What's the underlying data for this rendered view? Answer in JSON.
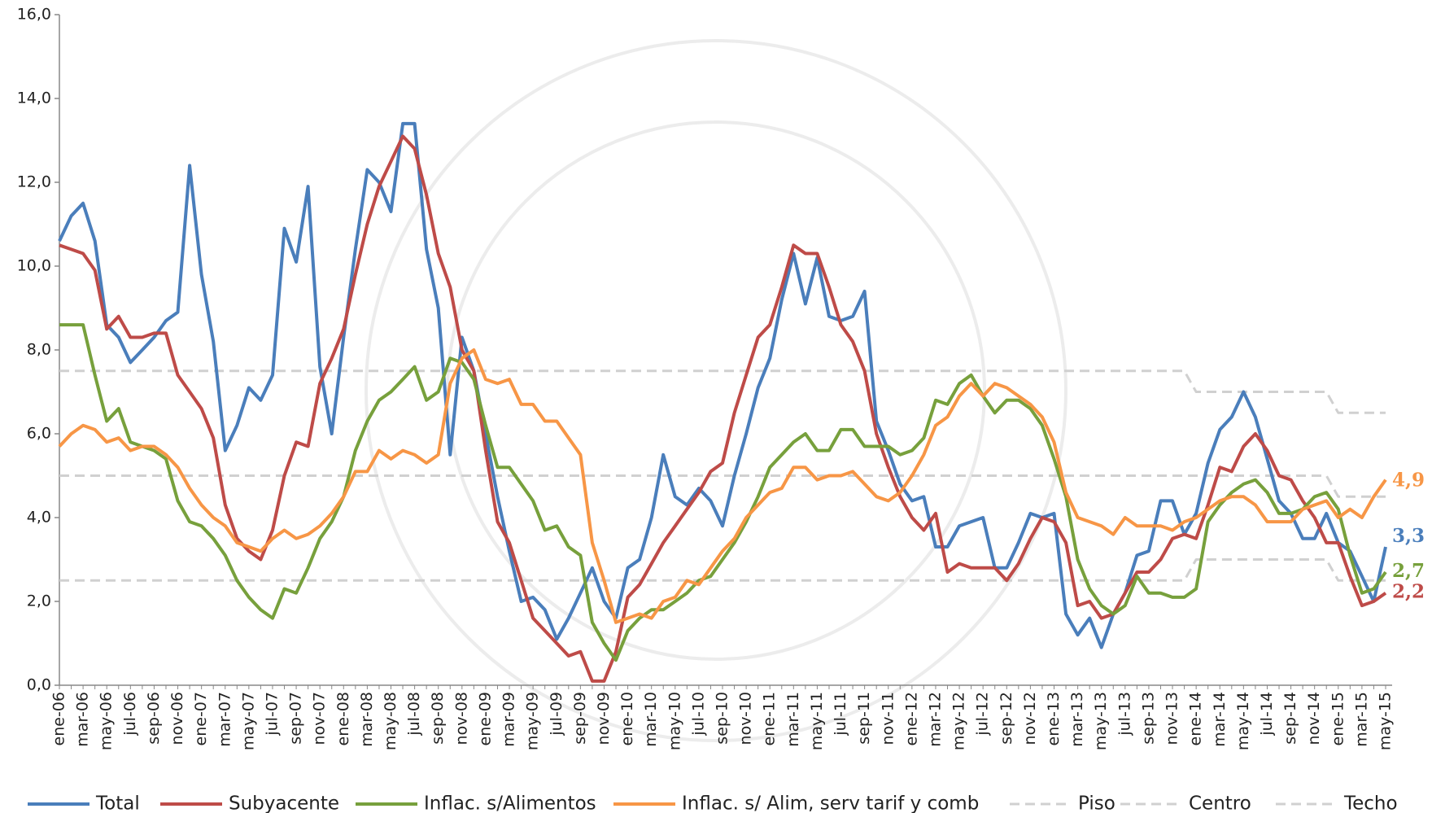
{
  "chart_data": {
    "type": "line",
    "categories": [
      "ene-06",
      null,
      "mar-06",
      null,
      "may-06",
      null,
      "jul-06",
      null,
      "sep-06",
      null,
      "nov-06",
      null,
      "ene-07",
      null,
      "mar-07",
      null,
      "may-07",
      null,
      "jul-07",
      null,
      "sep-07",
      null,
      "nov-07",
      null,
      "ene-08",
      null,
      "mar-08",
      null,
      "may-08",
      null,
      "jul-08",
      null,
      "sep-08",
      null,
      "nov-08",
      null,
      "ene-09",
      null,
      "mar-09",
      null,
      "may-09",
      null,
      "jul-09",
      null,
      "sep-09",
      null,
      "nov-09",
      null,
      "ene-10",
      null,
      "mar-10",
      null,
      "may-10",
      null,
      "jul-10",
      null,
      "sep-10",
      null,
      "nov-10",
      null,
      "ene-11",
      null,
      "mar-11",
      null,
      "may-11",
      null,
      "jul-11",
      null,
      "sep-11",
      null,
      "nov-11",
      null,
      "ene-12",
      null,
      "mar-12",
      null,
      "may-12",
      null,
      "jul-12",
      null,
      "sep-12",
      null,
      "nov-12",
      null,
      "ene-13",
      null,
      "mar-13",
      null,
      "may-13",
      null,
      "jul-13",
      null,
      "sep-13",
      null,
      "nov-13",
      null,
      "ene-14",
      null,
      "mar-14",
      null,
      "may-14",
      null,
      "jul-14",
      null,
      "sep-14",
      null,
      "nov-14",
      null,
      "ene-15",
      null,
      "mar-15",
      null,
      "may-15"
    ],
    "ylim": [
      0,
      16
    ],
    "yticks": [
      {
        "value": 0,
        "label": "0,0"
      },
      {
        "value": 2,
        "label": "2,0"
      },
      {
        "value": 4,
        "label": "4,0"
      },
      {
        "value": 6,
        "label": "6,0"
      },
      {
        "value": 8,
        "label": "8,0"
      },
      {
        "value": 10,
        "label": "10,0"
      },
      {
        "value": 12,
        "label": "12,0"
      },
      {
        "value": 14,
        "label": "14,0"
      },
      {
        "value": 16,
        "label": "16,0"
      }
    ],
    "legend": "bottom",
    "series": [
      {
        "name": "Total",
        "color": "#4a7ebb",
        "last_label": "3,3",
        "values": [
          10.6,
          11.2,
          11.5,
          10.6,
          8.6,
          8.3,
          7.7,
          8.0,
          8.3,
          8.7,
          8.9,
          12.4,
          9.8,
          8.2,
          5.6,
          6.2,
          7.1,
          6.8,
          7.4,
          10.9,
          10.1,
          11.9,
          7.6,
          6.0,
          8.3,
          10.4,
          12.3,
          12.0,
          11.3,
          13.4,
          13.4,
          10.4,
          9.0,
          5.5,
          8.3,
          7.5,
          6.0,
          4.5,
          3.2,
          2.0,
          2.1,
          1.8,
          1.1,
          1.6,
          2.2,
          2.8,
          2.0,
          1.6,
          2.8,
          3.0,
          4.0,
          5.5,
          4.5,
          4.3,
          4.7,
          4.4,
          3.8,
          5.0,
          6.0,
          7.1,
          7.8,
          9.2,
          10.3,
          9.1,
          10.2,
          8.8,
          8.7,
          8.8,
          9.4,
          6.3,
          5.6,
          4.8,
          4.4,
          4.5,
          3.3,
          3.3,
          3.8,
          3.9,
          4.0,
          2.8,
          2.8,
          3.4,
          4.1,
          4.0,
          4.1,
          1.7,
          1.2,
          1.6,
          0.9,
          1.7,
          2.2,
          3.1,
          3.2,
          4.4,
          4.4,
          3.6,
          4.1,
          5.3,
          6.1,
          6.4,
          7.0,
          6.4,
          5.4,
          4.4,
          4.1,
          3.5,
          3.5,
          4.1,
          3.4,
          3.2,
          2.6,
          2.0,
          3.3
        ]
      },
      {
        "name": "Subyacente",
        "color": "#be4b48",
        "last_label": "2,2",
        "values": [
          10.5,
          10.4,
          10.3,
          9.9,
          8.5,
          8.8,
          8.3,
          8.3,
          8.4,
          8.4,
          7.4,
          7.0,
          6.6,
          5.9,
          4.3,
          3.5,
          3.2,
          3.0,
          3.7,
          5.0,
          5.8,
          5.7,
          7.2,
          7.8,
          8.5,
          9.8,
          11.0,
          11.9,
          12.5,
          13.1,
          12.8,
          11.7,
          10.3,
          9.5,
          8.0,
          7.5,
          5.6,
          3.9,
          3.4,
          2.5,
          1.6,
          1.3,
          1.0,
          0.7,
          0.8,
          0.1,
          0.1,
          0.8,
          2.1,
          2.4,
          2.9,
          3.4,
          3.8,
          4.2,
          4.6,
          5.1,
          5.3,
          6.5,
          7.4,
          8.3,
          8.6,
          9.5,
          10.5,
          10.3,
          10.3,
          9.5,
          8.6,
          8.2,
          7.5,
          6.0,
          5.2,
          4.5,
          4.0,
          3.7,
          4.1,
          2.7,
          2.9,
          2.8,
          2.8,
          2.8,
          2.5,
          2.9,
          3.5,
          4.0,
          3.9,
          3.4,
          1.9,
          2.0,
          1.6,
          1.7,
          2.2,
          2.7,
          2.7,
          3.0,
          3.5,
          3.6,
          3.5,
          4.3,
          5.2,
          5.1,
          5.7,
          6.0,
          5.6,
          5.0,
          4.9,
          4.4,
          4.0,
          3.4,
          3.4,
          2.6,
          1.9,
          2.0,
          2.2
        ]
      },
      {
        "name": "Inflac. s/Alimentos",
        "color": "#77a03c",
        "last_label": "2,7",
        "values": [
          8.6,
          8.6,
          8.6,
          7.4,
          6.3,
          6.6,
          5.8,
          5.7,
          5.6,
          5.4,
          4.4,
          3.9,
          3.8,
          3.5,
          3.1,
          2.5,
          2.1,
          1.8,
          1.6,
          2.3,
          2.2,
          2.8,
          3.5,
          3.9,
          4.5,
          5.6,
          6.3,
          6.8,
          7.0,
          7.3,
          7.6,
          6.8,
          7.0,
          7.8,
          7.7,
          7.3,
          6.2,
          5.2,
          5.2,
          4.8,
          4.4,
          3.7,
          3.8,
          3.3,
          3.1,
          1.5,
          1.0,
          0.6,
          1.3,
          1.6,
          1.8,
          1.8,
          2.0,
          2.2,
          2.5,
          2.6,
          3.0,
          3.4,
          3.9,
          4.5,
          5.2,
          5.5,
          5.8,
          6.0,
          5.6,
          5.6,
          6.1,
          6.1,
          5.7,
          5.7,
          5.7,
          5.5,
          5.6,
          5.9,
          6.8,
          6.7,
          7.2,
          7.4,
          6.9,
          6.5,
          6.8,
          6.8,
          6.6,
          6.2,
          5.4,
          4.5,
          3.0,
          2.3,
          1.9,
          1.7,
          1.9,
          2.6,
          2.2,
          2.2,
          2.1,
          2.1,
          2.3,
          3.9,
          4.3,
          4.6,
          4.8,
          4.9,
          4.6,
          4.1,
          4.1,
          4.2,
          4.5,
          4.6,
          4.2,
          3.1,
          2.2,
          2.3,
          2.7
        ]
      },
      {
        "name": "Inflac. s/ Alim, serv tarif y comb",
        "color": "#f79646",
        "last_label": "4,9",
        "values": [
          5.7,
          6.0,
          6.2,
          6.1,
          5.8,
          5.9,
          5.6,
          5.7,
          5.7,
          5.5,
          5.2,
          4.7,
          4.3,
          4.0,
          3.8,
          3.4,
          3.3,
          3.2,
          3.5,
          3.7,
          3.5,
          3.6,
          3.8,
          4.1,
          4.5,
          5.1,
          5.1,
          5.6,
          5.4,
          5.6,
          5.5,
          5.3,
          5.5,
          7.2,
          7.8,
          8.0,
          7.3,
          7.2,
          7.3,
          6.7,
          6.7,
          6.3,
          6.3,
          5.9,
          5.5,
          3.4,
          2.5,
          1.5,
          1.6,
          1.7,
          1.6,
          2.0,
          2.1,
          2.5,
          2.4,
          2.8,
          3.2,
          3.5,
          4.0,
          4.3,
          4.6,
          4.7,
          5.2,
          5.2,
          4.9,
          5.0,
          5.0,
          5.1,
          4.8,
          4.5,
          4.4,
          4.6,
          5.0,
          5.5,
          6.2,
          6.4,
          6.9,
          7.2,
          6.9,
          7.2,
          7.1,
          6.9,
          6.7,
          6.4,
          5.8,
          4.6,
          4.0,
          3.9,
          3.8,
          3.6,
          4.0,
          3.8,
          3.8,
          3.8,
          3.7,
          3.9,
          4.0,
          4.2,
          4.4,
          4.5,
          4.5,
          4.3,
          3.9,
          3.9,
          3.9,
          4.2,
          4.3,
          4.4,
          4.0,
          4.2,
          4.0,
          4.5,
          4.9
        ]
      },
      {
        "name": "Piso",
        "color": "#d0d0d0",
        "dashed": true,
        "values": [
          2.5,
          2.5,
          2.5,
          2.5,
          2.5,
          2.5,
          2.5,
          2.5,
          2.5,
          2.5,
          2.5,
          2.5,
          2.5,
          2.5,
          2.5,
          2.5,
          2.5,
          2.5,
          2.5,
          2.5,
          2.5,
          2.5,
          2.5,
          2.5,
          2.5,
          2.5,
          2.5,
          2.5,
          2.5,
          2.5,
          2.5,
          2.5,
          2.5,
          2.5,
          2.5,
          2.5,
          2.5,
          2.5,
          2.5,
          2.5,
          2.5,
          2.5,
          2.5,
          2.5,
          2.5,
          2.5,
          2.5,
          2.5,
          2.5,
          2.5,
          2.5,
          2.5,
          2.5,
          2.5,
          2.5,
          2.5,
          2.5,
          2.5,
          2.5,
          2.5,
          2.5,
          2.5,
          2.5,
          2.5,
          2.5,
          2.5,
          2.5,
          2.5,
          2.5,
          2.5,
          2.5,
          2.5,
          2.5,
          2.5,
          2.5,
          2.5,
          2.5,
          2.5,
          2.5,
          2.5,
          2.5,
          2.5,
          2.5,
          2.5,
          2.5,
          2.5,
          2.5,
          2.5,
          2.5,
          2.5,
          2.5,
          2.5,
          2.5,
          2.5,
          2.5,
          2.5,
          3.0,
          3.0,
          3.0,
          3.0,
          3.0,
          3.0,
          3.0,
          3.0,
          3.0,
          3.0,
          3.0,
          3.0,
          2.5,
          2.5,
          2.5,
          2.5,
          2.5
        ]
      },
      {
        "name": "Centro",
        "color": "#d0d0d0",
        "dashed": true,
        "values": [
          5.0,
          5.0,
          5.0,
          5.0,
          5.0,
          5.0,
          5.0,
          5.0,
          5.0,
          5.0,
          5.0,
          5.0,
          5.0,
          5.0,
          5.0,
          5.0,
          5.0,
          5.0,
          5.0,
          5.0,
          5.0,
          5.0,
          5.0,
          5.0,
          5.0,
          5.0,
          5.0,
          5.0,
          5.0,
          5.0,
          5.0,
          5.0,
          5.0,
          5.0,
          5.0,
          5.0,
          5.0,
          5.0,
          5.0,
          5.0,
          5.0,
          5.0,
          5.0,
          5.0,
          5.0,
          5.0,
          5.0,
          5.0,
          5.0,
          5.0,
          5.0,
          5.0,
          5.0,
          5.0,
          5.0,
          5.0,
          5.0,
          5.0,
          5.0,
          5.0,
          5.0,
          5.0,
          5.0,
          5.0,
          5.0,
          5.0,
          5.0,
          5.0,
          5.0,
          5.0,
          5.0,
          5.0,
          5.0,
          5.0,
          5.0,
          5.0,
          5.0,
          5.0,
          5.0,
          5.0,
          5.0,
          5.0,
          5.0,
          5.0,
          5.0,
          5.0,
          5.0,
          5.0,
          5.0,
          5.0,
          5.0,
          5.0,
          5.0,
          5.0,
          5.0,
          5.0,
          5.0,
          5.0,
          5.0,
          5.0,
          5.0,
          5.0,
          5.0,
          5.0,
          5.0,
          5.0,
          5.0,
          5.0,
          4.5,
          4.5,
          4.5,
          4.5,
          4.5
        ]
      },
      {
        "name": "Techo",
        "color": "#d0d0d0",
        "dashed": true,
        "values": [
          7.5,
          7.5,
          7.5,
          7.5,
          7.5,
          7.5,
          7.5,
          7.5,
          7.5,
          7.5,
          7.5,
          7.5,
          7.5,
          7.5,
          7.5,
          7.5,
          7.5,
          7.5,
          7.5,
          7.5,
          7.5,
          7.5,
          7.5,
          7.5,
          7.5,
          7.5,
          7.5,
          7.5,
          7.5,
          7.5,
          7.5,
          7.5,
          7.5,
          7.5,
          7.5,
          7.5,
          7.5,
          7.5,
          7.5,
          7.5,
          7.5,
          7.5,
          7.5,
          7.5,
          7.5,
          7.5,
          7.5,
          7.5,
          7.5,
          7.5,
          7.5,
          7.5,
          7.5,
          7.5,
          7.5,
          7.5,
          7.5,
          7.5,
          7.5,
          7.5,
          7.5,
          7.5,
          7.5,
          7.5,
          7.5,
          7.5,
          7.5,
          7.5,
          7.5,
          7.5,
          7.5,
          7.5,
          7.5,
          7.5,
          7.5,
          7.5,
          7.5,
          7.5,
          7.5,
          7.5,
          7.5,
          7.5,
          7.5,
          7.5,
          7.5,
          7.5,
          7.5,
          7.5,
          7.5,
          7.5,
          7.5,
          7.5,
          7.5,
          7.5,
          7.5,
          7.5,
          7.0,
          7.0,
          7.0,
          7.0,
          7.0,
          7.0,
          7.0,
          7.0,
          7.0,
          7.0,
          7.0,
          7.0,
          6.5,
          6.5,
          6.5,
          6.5,
          6.5
        ]
      }
    ]
  }
}
